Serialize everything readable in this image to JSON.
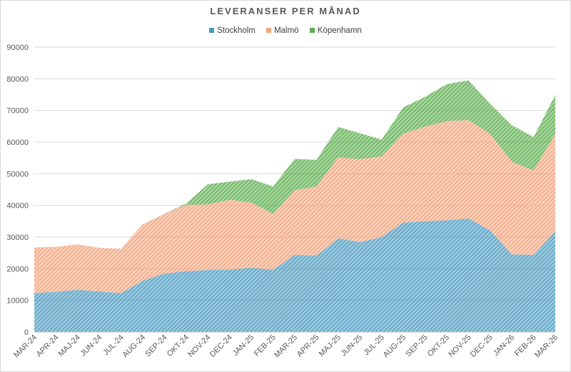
{
  "chart_data": {
    "type": "area",
    "stacked": true,
    "title": "LEVERANSER PER MÅNAD",
    "xlabel": "",
    "ylabel": "",
    "ylim": [
      0,
      90000
    ],
    "yticks": [
      0,
      10000,
      20000,
      30000,
      40000,
      50000,
      60000,
      70000,
      80000,
      90000
    ],
    "ytick_labels": [
      "0",
      "10000",
      "20000",
      "30000",
      "40000",
      "50000",
      "60000",
      "70000",
      "80000",
      "90000"
    ],
    "grid": true,
    "legend_position": "top",
    "categories": [
      "MAR-24",
      "APR-24",
      "MAJ-24",
      "JUN-24",
      "JUL-24",
      "AUG-24",
      "SEP-24",
      "OKT-24",
      "NOV-24",
      "DEC-24",
      "JAN-25",
      "FEB-25",
      "MAR-25",
      "APR-25",
      "MAJ-25",
      "JUN-25",
      "JUL-25",
      "AUG-25",
      "SEP-25",
      "OKT-25",
      "NOV-25",
      "DEC-25",
      "JAN-26",
      "FEB-26",
      "MAR-26"
    ],
    "series": [
      {
        "name": "Stockholm",
        "color": "#4a9ac0",
        "values": [
          12300,
          12700,
          13300,
          12800,
          12300,
          16200,
          18500,
          19200,
          19600,
          19700,
          20300,
          19600,
          24400,
          24100,
          29600,
          28400,
          30000,
          34600,
          35000,
          35300,
          35900,
          32100,
          24500,
          24400,
          31800
        ]
      },
      {
        "name": "Malmö",
        "color": "#f1a47c",
        "values": [
          14400,
          14200,
          14400,
          13800,
          14000,
          17800,
          18900,
          21000,
          20700,
          22100,
          20600,
          17700,
          20400,
          21900,
          25600,
          26200,
          25500,
          28100,
          29900,
          31300,
          31100,
          30500,
          29300,
          26600,
          30800
        ]
      },
      {
        "name": "Köpenhamn",
        "color": "#5cae4e",
        "values": [
          0,
          0,
          0,
          0,
          0,
          0,
          0,
          400,
          6400,
          5700,
          7400,
          8700,
          9900,
          8400,
          9600,
          8200,
          5300,
          8300,
          9400,
          11700,
          12500,
          9500,
          11500,
          10600,
          12300
        ]
      }
    ]
  }
}
